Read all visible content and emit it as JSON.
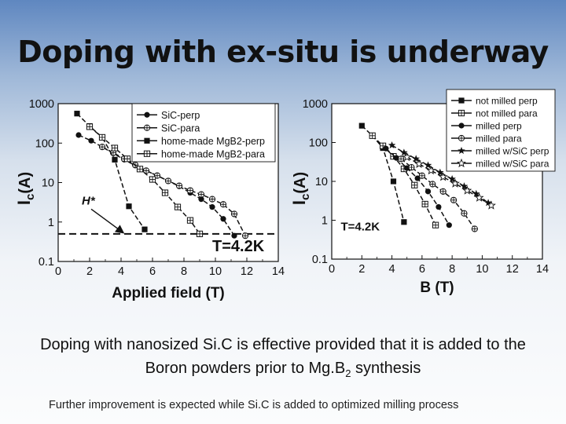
{
  "slide": {
    "title": "Doping with ex-situ is underway",
    "caption_pre": "Doping with nanosized Si.C is effective provided that it is added to the Boron powders prior to Mg.B",
    "caption_sub": "2",
    "caption_post": " synthesis",
    "footnote": "Further improvement is expected while Si.C is added to optimized milling process"
  },
  "chart_data": [
    {
      "type": "line",
      "title": "",
      "xlabel": "Applied field (T)",
      "ylabel_main": "I",
      "ylabel_sub": "c",
      "ylabel_unit": "(A)",
      "xlim": [
        0,
        14
      ],
      "ylim": [
        0.1,
        1000
      ],
      "yscale": "log",
      "xticks": [
        0,
        2,
        4,
        6,
        8,
        10,
        12,
        14
      ],
      "yticks": [
        0.1,
        1,
        10,
        100,
        1000
      ],
      "ytick_labels": [
        "0.1",
        "1",
        "10",
        "100",
        "1000"
      ],
      "legend_position": "top-right",
      "grid": false,
      "annotations": [
        {
          "text": "H*",
          "x": 1.5,
          "y": 2.8
        },
        {
          "text": "T=4.2K",
          "x": 9.8,
          "y": 0.18
        }
      ],
      "dashed_hline": 0.5,
      "series": [
        {
          "name": "SiC-perp",
          "marker": "circle",
          "x": [
            1.3,
            2.1,
            2.8,
            3.5,
            4.2,
            4.9,
            5.6,
            6.3,
            7.0,
            7.7,
            8.4,
            9.1,
            9.8,
            10.5,
            11.2
          ],
          "y": [
            160,
            115,
            80,
            55,
            38,
            27,
            20,
            15,
            11,
            8,
            5.5,
            3.8,
            2.4,
            1.2,
            0.45
          ]
        },
        {
          "name": "SiC-para",
          "marker": "circle-plus",
          "x": [
            2.8,
            3.5,
            4.2,
            4.9,
            5.6,
            6.3,
            7.0,
            7.7,
            8.4,
            9.1,
            9.8,
            10.5,
            11.2,
            11.9
          ],
          "y": [
            80,
            57,
            40,
            28,
            20,
            15,
            11,
            8.3,
            6.3,
            5,
            3.8,
            2.8,
            1.6,
            0.45
          ]
        },
        {
          "name": "home-made MgB2-perp",
          "marker": "square",
          "x": [
            1.2,
            2.0,
            2.8,
            3.6,
            4.5,
            5.5
          ],
          "y": [
            560,
            270,
            140,
            38,
            2.5,
            0.65
          ]
        },
        {
          "name": "home-made MgB2-para",
          "marker": "square-plus",
          "x": [
            2.0,
            2.8,
            3.6,
            4.4,
            5.2,
            6.0,
            6.8,
            7.6,
            8.4,
            9.0
          ],
          "y": [
            260,
            140,
            75,
            40,
            22,
            12,
            5.5,
            2.4,
            1.1,
            0.5
          ]
        }
      ]
    },
    {
      "type": "line",
      "title": "",
      "xlabel": "B (T)",
      "ylabel_main": "I",
      "ylabel_sub": "c",
      "ylabel_unit": "(A)",
      "xlim": [
        0,
        14
      ],
      "ylim": [
        0.1,
        1000
      ],
      "yscale": "log",
      "xticks": [
        0,
        2,
        4,
        6,
        8,
        10,
        12,
        14
      ],
      "yticks": [
        0.1,
        1,
        10,
        100,
        1000
      ],
      "ytick_labels": [
        "0.1",
        "1",
        "10",
        "100",
        "1000"
      ],
      "legend_position": "top-right",
      "grid": false,
      "annotations": [
        {
          "text": "T=4.2K",
          "x": 0.6,
          "y": 0.55
        }
      ],
      "series": [
        {
          "name": "not milled perp",
          "marker": "square",
          "x": [
            2.0,
            2.7,
            3.4,
            4.1,
            4.8
          ],
          "y": [
            270,
            150,
            72,
            10,
            0.9
          ]
        },
        {
          "name": "not milled para",
          "marker": "square-plus",
          "x": [
            2.7,
            3.4,
            4.1,
            4.8,
            5.5,
            6.2,
            6.9
          ],
          "y": [
            150,
            82,
            44,
            21,
            8,
            2.6,
            0.75
          ]
        },
        {
          "name": "milled perp",
          "marker": "circle",
          "x": [
            3.6,
            4.3,
            5.0,
            5.7,
            6.4,
            7.1,
            7.8
          ],
          "y": [
            70,
            40,
            22,
            12,
            5.5,
            2.2,
            0.75
          ]
        },
        {
          "name": "milled para",
          "marker": "circle-plus",
          "x": [
            4.6,
            5.3,
            6.0,
            6.7,
            7.4,
            8.1,
            8.8,
            9.5
          ],
          "y": [
            38,
            23,
            14,
            8.5,
            5.5,
            3.3,
            1.5,
            0.6
          ]
        },
        {
          "name": "milled w/SiC perp",
          "marker": "star",
          "x": [
            4.0,
            4.8,
            5.6,
            6.4,
            7.2,
            8.0,
            8.8,
            9.6,
            10.4
          ],
          "y": [
            85,
            55,
            38,
            26,
            17,
            11.5,
            7.5,
            4.8,
            2.8
          ]
        },
        {
          "name": "milled w/SiC para",
          "marker": "star-outline",
          "x": [
            5.0,
            5.8,
            6.6,
            7.4,
            8.2,
            9.0,
            9.8,
            10.6
          ],
          "y": [
            42,
            28,
            19,
            13,
            8.8,
            5.8,
            3.8,
            2.4
          ]
        }
      ]
    }
  ]
}
